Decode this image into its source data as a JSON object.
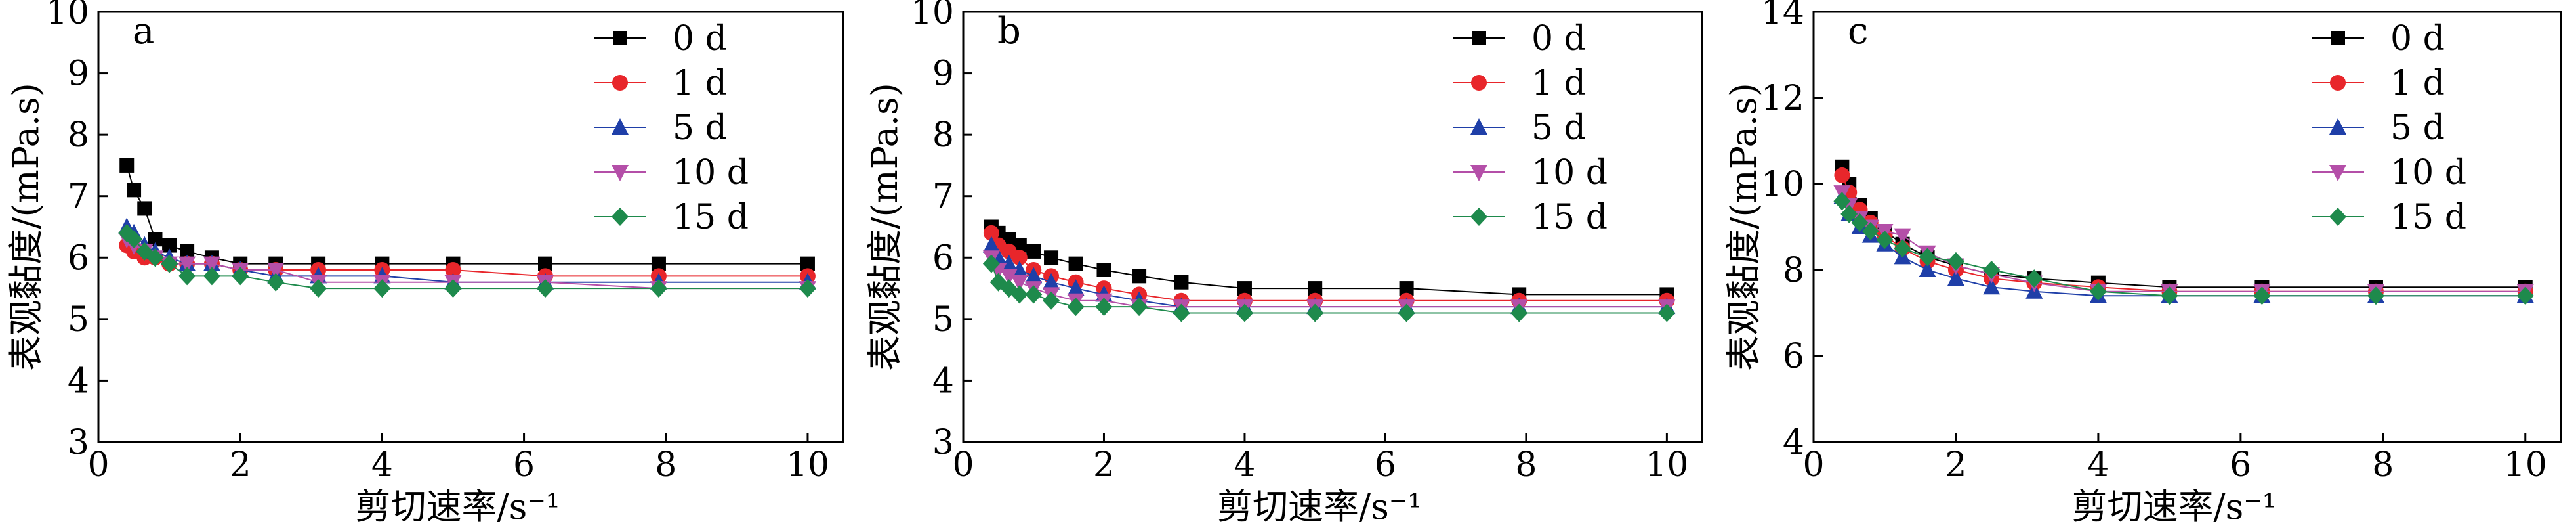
{
  "chart_data": [
    {
      "type": "line",
      "panel_label": "a",
      "xlabel": "剪切速率/s⁻¹",
      "ylabel": "表观黏度/(mPa.s)",
      "xlim": [
        0,
        10.5
      ],
      "ylim": [
        3,
        10
      ],
      "xticks": [
        0,
        2,
        4,
        6,
        8,
        10
      ],
      "yticks": [
        3,
        4,
        5,
        6,
        7,
        8,
        9,
        10
      ],
      "legend_position": "top-right",
      "series": [
        {
          "name": "0 d",
          "color": "#000000",
          "marker": "square",
          "x": [
            0.4,
            0.5,
            0.65,
            0.8,
            1.0,
            1.25,
            1.6,
            2.0,
            2.5,
            3.1,
            4.0,
            5.0,
            6.3,
            7.9,
            10.0
          ],
          "y": [
            7.5,
            7.1,
            6.8,
            6.3,
            6.2,
            6.1,
            6.0,
            5.9,
            5.9,
            5.9,
            5.9,
            5.9,
            5.9,
            5.9,
            5.9
          ]
        },
        {
          "name": "1 d",
          "color": "#e8262b",
          "marker": "circle",
          "x": [
            0.4,
            0.5,
            0.65,
            0.8,
            1.0,
            1.25,
            1.6,
            2.0,
            2.5,
            3.1,
            4.0,
            5.0,
            6.3,
            7.9,
            10.0
          ],
          "y": [
            6.2,
            6.1,
            6.0,
            6.0,
            5.9,
            5.9,
            5.9,
            5.8,
            5.8,
            5.8,
            5.8,
            5.8,
            5.7,
            5.7,
            5.7
          ]
        },
        {
          "name": "5 d",
          "color": "#1f3fa8",
          "marker": "triangle-up",
          "x": [
            0.4,
            0.5,
            0.65,
            0.8,
            1.0,
            1.25,
            1.6,
            2.0,
            2.5,
            3.1,
            4.0,
            5.0,
            6.3,
            7.9,
            10.0
          ],
          "y": [
            6.5,
            6.4,
            6.2,
            6.1,
            6.0,
            5.9,
            5.9,
            5.8,
            5.7,
            5.7,
            5.7,
            5.6,
            5.6,
            5.6,
            5.6
          ]
        },
        {
          "name": "10 d",
          "color": "#b44fa8",
          "marker": "triangle-down",
          "x": [
            0.4,
            0.5,
            0.65,
            0.8,
            1.0,
            1.25,
            1.6,
            2.0,
            2.5,
            3.1,
            4.0,
            5.0,
            6.3,
            7.9,
            10.0
          ],
          "y": [
            6.3,
            6.2,
            6.1,
            6.0,
            5.9,
            5.9,
            5.9,
            5.8,
            5.8,
            5.6,
            5.6,
            5.6,
            5.6,
            5.5,
            5.5
          ]
        },
        {
          "name": "15 d",
          "color": "#1e8a4c",
          "marker": "diamond",
          "x": [
            0.4,
            0.5,
            0.65,
            0.8,
            1.0,
            1.25,
            1.6,
            2.0,
            2.5,
            3.1,
            4.0,
            5.0,
            6.3,
            7.9,
            10.0
          ],
          "y": [
            6.4,
            6.3,
            6.1,
            6.0,
            5.9,
            5.7,
            5.7,
            5.7,
            5.6,
            5.5,
            5.5,
            5.5,
            5.5,
            5.5,
            5.5
          ]
        }
      ]
    },
    {
      "type": "line",
      "panel_label": "b",
      "xlabel": "剪切速率/s⁻¹",
      "ylabel": "表观黏度/(mPa.s)",
      "xlim": [
        0,
        10.5
      ],
      "ylim": [
        3,
        10
      ],
      "xticks": [
        0,
        2,
        4,
        6,
        8,
        10
      ],
      "yticks": [
        3,
        4,
        5,
        6,
        7,
        8,
        9,
        10
      ],
      "legend_position": "top-right",
      "series": [
        {
          "name": "0 d",
          "color": "#000000",
          "marker": "square",
          "x": [
            0.4,
            0.5,
            0.65,
            0.8,
            1.0,
            1.25,
            1.6,
            2.0,
            2.5,
            3.1,
            4.0,
            5.0,
            6.3,
            7.9,
            10.0
          ],
          "y": [
            6.5,
            6.4,
            6.3,
            6.2,
            6.1,
            6.0,
            5.9,
            5.8,
            5.7,
            5.6,
            5.5,
            5.5,
            5.5,
            5.4,
            5.4
          ]
        },
        {
          "name": "1 d",
          "color": "#e8262b",
          "marker": "circle",
          "x": [
            0.4,
            0.5,
            0.65,
            0.8,
            1.0,
            1.25,
            1.6,
            2.0,
            2.5,
            3.1,
            4.0,
            5.0,
            6.3,
            7.9,
            10.0
          ],
          "y": [
            6.4,
            6.2,
            6.1,
            6.0,
            5.8,
            5.7,
            5.6,
            5.5,
            5.4,
            5.3,
            5.3,
            5.3,
            5.3,
            5.3,
            5.3
          ]
        },
        {
          "name": "5 d",
          "color": "#1f3fa8",
          "marker": "triangle-up",
          "x": [
            0.4,
            0.5,
            0.65,
            0.8,
            1.0,
            1.25,
            1.6,
            2.0,
            2.5,
            3.1,
            4.0,
            5.0,
            6.3,
            7.9,
            10.0
          ],
          "y": [
            6.2,
            6.0,
            5.9,
            5.8,
            5.7,
            5.6,
            5.5,
            5.4,
            5.3,
            5.2,
            5.2,
            5.2,
            5.2,
            5.2,
            5.2
          ]
        },
        {
          "name": "10 d",
          "color": "#b44fa8",
          "marker": "triangle-down",
          "x": [
            0.4,
            0.5,
            0.65,
            0.8,
            1.0,
            1.25,
            1.6,
            2.0,
            2.5,
            3.1,
            4.0,
            5.0,
            6.3,
            7.9,
            10.0
          ],
          "y": [
            6.0,
            5.8,
            5.7,
            5.6,
            5.5,
            5.4,
            5.3,
            5.3,
            5.2,
            5.2,
            5.2,
            5.2,
            5.2,
            5.2,
            5.2
          ]
        },
        {
          "name": "15 d",
          "color": "#1e8a4c",
          "marker": "diamond",
          "x": [
            0.4,
            0.5,
            0.65,
            0.8,
            1.0,
            1.25,
            1.6,
            2.0,
            2.5,
            3.1,
            4.0,
            5.0,
            6.3,
            7.9,
            10.0
          ],
          "y": [
            5.9,
            5.6,
            5.5,
            5.4,
            5.4,
            5.3,
            5.2,
            5.2,
            5.2,
            5.1,
            5.1,
            5.1,
            5.1,
            5.1,
            5.1
          ]
        }
      ]
    },
    {
      "type": "line",
      "panel_label": "c",
      "xlabel": "剪切速率/s⁻¹",
      "ylabel": "表观黏度/(mPa.s)",
      "xlim": [
        0,
        10.5
      ],
      "ylim": [
        4,
        14
      ],
      "xticks": [
        0,
        2,
        4,
        6,
        8,
        10
      ],
      "yticks": [
        4,
        6,
        8,
        10,
        12,
        14
      ],
      "legend_position": "top-right",
      "series": [
        {
          "name": "0 d",
          "color": "#000000",
          "marker": "square",
          "x": [
            0.4,
            0.5,
            0.65,
            0.8,
            1.0,
            1.25,
            1.6,
            2.0,
            2.5,
            3.1,
            4.0,
            5.0,
            6.3,
            7.9,
            10.0
          ],
          "y": [
            10.4,
            10.0,
            9.5,
            9.2,
            8.9,
            8.6,
            8.3,
            8.1,
            7.9,
            7.8,
            7.7,
            7.6,
            7.6,
            7.6,
            7.6
          ]
        },
        {
          "name": "1 d",
          "color": "#e8262b",
          "marker": "circle",
          "x": [
            0.4,
            0.5,
            0.65,
            0.8,
            1.0,
            1.25,
            1.6,
            2.0,
            2.5,
            3.1,
            4.0,
            5.0,
            6.3,
            7.9,
            10.0
          ],
          "y": [
            10.2,
            9.8,
            9.4,
            9.1,
            8.8,
            8.5,
            8.2,
            8.0,
            7.8,
            7.7,
            7.6,
            7.5,
            7.5,
            7.5,
            7.5
          ]
        },
        {
          "name": "5 d",
          "color": "#1f3fa8",
          "marker": "triangle-up",
          "x": [
            0.4,
            0.5,
            0.65,
            0.8,
            1.0,
            1.25,
            1.6,
            2.0,
            2.5,
            3.1,
            4.0,
            5.0,
            6.3,
            7.9,
            10.0
          ],
          "y": [
            9.7,
            9.3,
            9.0,
            8.8,
            8.6,
            8.3,
            8.0,
            7.8,
            7.6,
            7.5,
            7.4,
            7.4,
            7.4,
            7.4,
            7.4
          ]
        },
        {
          "name": "10 d",
          "color": "#b44fa8",
          "marker": "triangle-down",
          "x": [
            0.4,
            0.5,
            0.65,
            0.8,
            1.0,
            1.25,
            1.6,
            2.0,
            2.5,
            3.1,
            4.0,
            5.0,
            6.3,
            7.9,
            10.0
          ],
          "y": [
            9.8,
            9.5,
            9.2,
            9.0,
            8.9,
            8.8,
            8.4,
            8.1,
            7.9,
            7.7,
            7.5,
            7.5,
            7.5,
            7.5,
            7.5
          ]
        },
        {
          "name": "15 d",
          "color": "#1e8a4c",
          "marker": "diamond",
          "x": [
            0.4,
            0.5,
            0.65,
            0.8,
            1.0,
            1.25,
            1.6,
            2.0,
            2.5,
            3.1,
            4.0,
            5.0,
            6.3,
            7.9,
            10.0
          ],
          "y": [
            9.6,
            9.3,
            9.1,
            8.9,
            8.7,
            8.5,
            8.3,
            8.2,
            8.0,
            7.8,
            7.5,
            7.4,
            7.4,
            7.4,
            7.4
          ]
        }
      ]
    }
  ]
}
